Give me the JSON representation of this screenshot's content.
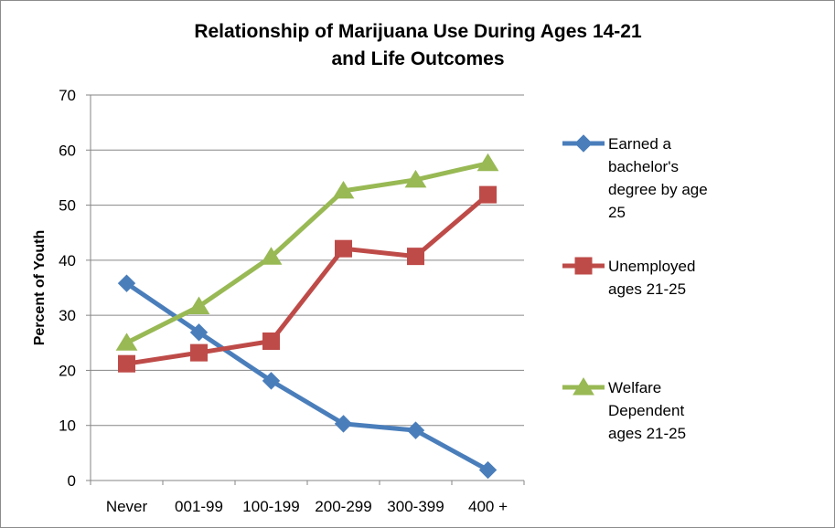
{
  "chart_data": {
    "type": "line",
    "title_lines": [
      "Relationship of Marijuana Use During Ages 14-21",
      "and Life Outcomes"
    ],
    "xlabel": "",
    "ylabel": "Percent of Youth",
    "categories": [
      "Never",
      "001-99",
      "100-199",
      "200-299",
      "300-399",
      "400 +"
    ],
    "ylim": [
      0,
      70
    ],
    "yticks": [
      0,
      10,
      20,
      30,
      40,
      50,
      60,
      70
    ],
    "grid": true,
    "legend_position": "right",
    "series": [
      {
        "name": "Earned a bachelor's degree by age 25",
        "legend_lines": [
          "Earned a",
          "bachelor's",
          "degree by age",
          "25"
        ],
        "color": "#4a7ebb",
        "marker": "diamond",
        "values": [
          35.8,
          26.9,
          18.1,
          10.3,
          9.1,
          1.9
        ]
      },
      {
        "name": "Unemployed ages 21-25",
        "legend_lines": [
          "Unemployed",
          "ages 21-25"
        ],
        "color": "#be4b48",
        "marker": "square",
        "values": [
          21.2,
          23.2,
          25.3,
          42.1,
          40.7,
          51.9
        ]
      },
      {
        "name": "Welfare Dependent ages 21-25",
        "legend_lines": [
          "Welfare",
          "Dependent",
          "ages 21-25"
        ],
        "color": "#98b954",
        "marker": "triangle",
        "values": [
          25.0,
          31.6,
          40.6,
          52.6,
          54.6,
          57.6
        ]
      }
    ]
  }
}
